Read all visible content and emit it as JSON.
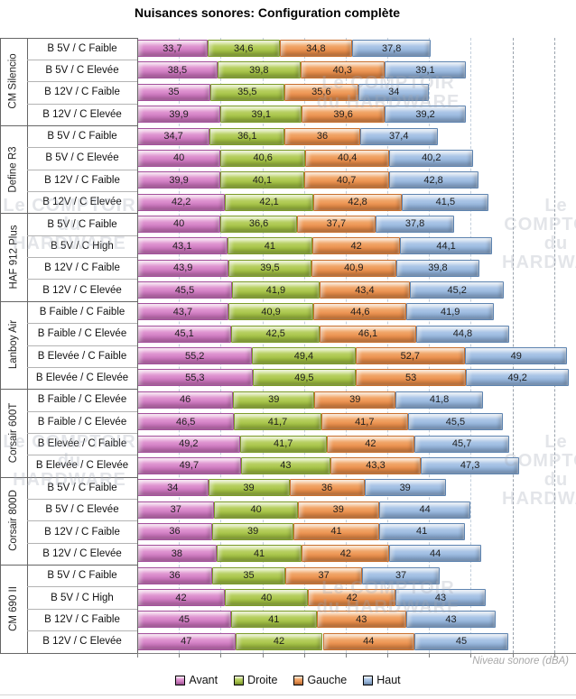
{
  "title": "Nuisances sonores: Configuration complète",
  "watermark": "Le COMPTOIR\ndu HARDWARE",
  "chart_data": {
    "type": "bar",
    "orientation": "horizontal",
    "stacked": true,
    "title": "Nuisances sonores: Configuration complète",
    "xlabel": "Niveau sonore (dBA)",
    "grid": true,
    "legend_position": "bottom",
    "x_axis": {
      "min": 0,
      "max": 200,
      "grid_step": 20,
      "tick_step": 20,
      "dark_grid_from": 180
    },
    "series": [
      {
        "name": "Avant",
        "color": "#D27FC4",
        "border": "#A4509C"
      },
      {
        "name": "Droite",
        "color": "#A9C64B",
        "border": "#7C9B28"
      },
      {
        "name": "Gauche",
        "color": "#ED9452",
        "border": "#C8702E"
      },
      {
        "name": "Haut",
        "color": "#9BBADF",
        "border": "#5E84B0"
      }
    ],
    "groups": [
      {
        "name": "CM Silencio",
        "rows": [
          {
            "label": "B 5V / C Faible",
            "values": [
              33.7,
              34.6,
              34.8,
              37.8
            ]
          },
          {
            "label": "B 5V / C Elevée",
            "values": [
              38.5,
              39.8,
              40.3,
              39.1
            ]
          },
          {
            "label": "B 12V / C Faible",
            "values": [
              35,
              35.5,
              35.6,
              34
            ]
          },
          {
            "label": "B 12V / C Elevée",
            "values": [
              39.9,
              39.1,
              39.6,
              39.2
            ]
          }
        ]
      },
      {
        "name": "Define R3",
        "rows": [
          {
            "label": "B 5V / C Faible",
            "values": [
              34.7,
              36.1,
              36,
              37.4
            ]
          },
          {
            "label": "B 5V / C Elevée",
            "values": [
              40,
              40.6,
              40.4,
              40.2
            ]
          },
          {
            "label": "B 12V / C Faible",
            "values": [
              39.9,
              40.1,
              40.7,
              42.8
            ]
          },
          {
            "label": "B 12V / C Elevée",
            "values": [
              42.2,
              42.1,
              42.8,
              41.5
            ]
          }
        ]
      },
      {
        "name": "HAF 912 Plus",
        "rows": [
          {
            "label": "B 5V / C Faible",
            "values": [
              40,
              36.6,
              37.7,
              37.8
            ]
          },
          {
            "label": "B 5V / C High",
            "values": [
              43.1,
              41,
              42,
              44.1
            ]
          },
          {
            "label": "B 12V / C Faible",
            "values": [
              43.9,
              39.5,
              40.9,
              39.8
            ]
          },
          {
            "label": "B 12V / C Elevée",
            "values": [
              45.5,
              41.9,
              43.4,
              45.2
            ]
          }
        ]
      },
      {
        "name": "Lanboy Air",
        "rows": [
          {
            "label": "B Faible / C Faible",
            "values": [
              43.7,
              40.9,
              44.6,
              41.9
            ]
          },
          {
            "label": "B Faible / C Elevée",
            "values": [
              45.1,
              42.5,
              46.1,
              44.8
            ]
          },
          {
            "label": "B Elevée / C Faible",
            "values": [
              55.2,
              49.4,
              52.7,
              49
            ]
          },
          {
            "label": "B Elevée / C Elevée",
            "values": [
              55.3,
              49.5,
              53,
              49.2
            ]
          }
        ]
      },
      {
        "name": "Corsair 600T",
        "rows": [
          {
            "label": "B Faible / C Elevée",
            "values": [
              46,
              39,
              39,
              41.8
            ]
          },
          {
            "label": "B Faible / C Elevée",
            "values": [
              46.5,
              41.7,
              41.7,
              45.5
            ]
          },
          {
            "label": "B Elevée / C Faible",
            "values": [
              49.2,
              41.7,
              42,
              45.7
            ]
          },
          {
            "label": "B Elevée / C Elevée",
            "values": [
              49.7,
              43,
              43.3,
              47.3
            ]
          }
        ]
      },
      {
        "name": "Corsair 800D",
        "rows": [
          {
            "label": "B 5V / C Faible",
            "values": [
              34,
              39,
              36,
              39
            ]
          },
          {
            "label": "B 5V / C Elevée",
            "values": [
              37,
              40,
              39,
              44
            ]
          },
          {
            "label": "B 12V / C Faible",
            "values": [
              36,
              39,
              41,
              41
            ]
          },
          {
            "label": "B 12V / C Elevée",
            "values": [
              38,
              41,
              42,
              44
            ]
          }
        ]
      },
      {
        "name": "CM 690 II",
        "rows": [
          {
            "label": "B 5V / C Faible",
            "values": [
              36,
              35,
              37,
              37
            ]
          },
          {
            "label": "B 5V / C High",
            "values": [
              42,
              40,
              42,
              43
            ]
          },
          {
            "label": "B 12V / C Faible",
            "values": [
              45,
              41,
              43,
              43
            ]
          },
          {
            "label": "B 12V / C Elevée",
            "values": [
              47,
              42,
              44,
              45
            ]
          }
        ]
      }
    ]
  }
}
